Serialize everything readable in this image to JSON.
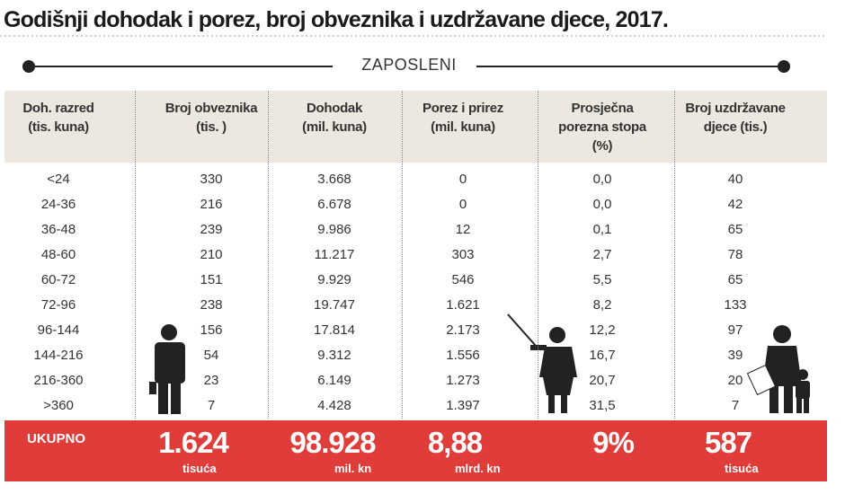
{
  "title": "Godišnji dohodak i porez, broj obveznika i uzdržavane djece, 2017.",
  "section": "ZAPOSLENI",
  "table": {
    "headers": [
      [
        "Doh. razred",
        "(tis. kuna)"
      ],
      [
        "Broj obveznika",
        "(tis. )"
      ],
      [
        "Dohodak",
        "(mil. kuna)"
      ],
      [
        "Porez i prirez",
        "(mil. kuna)"
      ],
      [
        "Prosječna",
        "porezna stopa",
        "(%)"
      ],
      [
        "Broj uzdržavane",
        "djece (tis.)"
      ]
    ],
    "rows": [
      [
        "<24",
        "330",
        "3.668",
        "0",
        "0,0",
        "40"
      ],
      [
        "24-36",
        "216",
        "6.678",
        "0",
        "0,0",
        "42"
      ],
      [
        "36-48",
        "239",
        "9.986",
        "12",
        "0,1",
        "65"
      ],
      [
        "48-60",
        "210",
        "11.217",
        "303",
        "2,7",
        "78"
      ],
      [
        "60-72",
        "151",
        "9.929",
        "546",
        "5,5",
        "65"
      ],
      [
        "72-96",
        "238",
        "19.747",
        "1.621",
        "8,2",
        "133"
      ],
      [
        "96-144",
        "156",
        "17.814",
        "2.173",
        "12,2",
        "97"
      ],
      [
        "144-216",
        "54",
        "9.312",
        "1.556",
        "16,7",
        "39"
      ],
      [
        "216-360",
        "23",
        "6.149",
        "1.273",
        "20,7",
        "20"
      ],
      [
        ">360",
        "7",
        "4.428",
        "1.397",
        "31,5",
        "7"
      ]
    ]
  },
  "total": {
    "label": "UKUPNO",
    "items": [
      {
        "value": "1.624",
        "unit": "tisuća"
      },
      {
        "value": "98.928",
        "unit": "mil. kn"
      },
      {
        "value": "8,88",
        "unit": "mlrd. kn"
      },
      {
        "value": "9%"
      },
      {
        "value": "587",
        "unit": "tisuća"
      }
    ]
  }
}
